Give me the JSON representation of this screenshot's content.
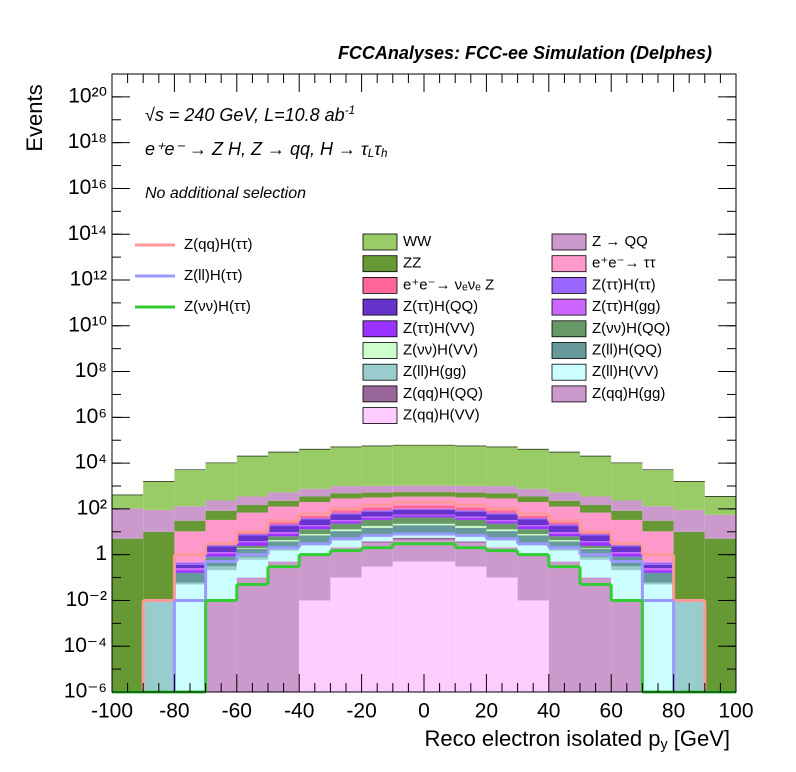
{
  "chart_data": {
    "type": "stacked_histogram",
    "title": "FCCAnalyses: FCC-ee Simulation (Delphes)",
    "y_label": "Events",
    "x_label": [
      {
        "text": "Reco electron isolated p"
      },
      {
        "text": "y",
        "sub": true
      },
      {
        "text": " [GeV]"
      }
    ],
    "annotations": [
      [
        {
          "text": "√s = 240 GeV, L=10.8 ab"
        },
        {
          "text": "-1",
          "sup": true
        }
      ],
      [
        {
          "text": "e⁺e⁻ → Z H, Z → qq, H → τ"
        },
        {
          "text": "L",
          "sub": true
        },
        {
          "text": "τ"
        },
        {
          "text": "h",
          "sub": true
        }
      ],
      [
        {
          "text": "No additional selection"
        }
      ]
    ],
    "log_y": true,
    "bins": [
      -100,
      -90,
      -80,
      -70,
      -60,
      -50,
      -40,
      -30,
      -20,
      -10,
      0,
      10,
      20,
      30,
      40,
      50,
      60,
      70,
      80,
      90,
      100
    ],
    "xlim": [
      -100,
      100
    ],
    "xticks": [
      -100,
      -80,
      -60,
      -40,
      -20,
      0,
      20,
      40,
      60,
      80,
      100
    ],
    "ylim": [
      1e-06,
      1e+21
    ],
    "yticks": [
      {
        "value": 1e-06,
        "label": "10⁻⁶"
      },
      {
        "value": 0.0001,
        "label": "10⁻⁴"
      },
      {
        "value": 0.01,
        "label": "10⁻²"
      },
      1,
      {
        "value": 100,
        "label": "10²"
      },
      {
        "value": 10000.0,
        "label": "10⁴"
      },
      {
        "value": 1000000.0,
        "label": "10⁶"
      },
      {
        "value": 100000000.0,
        "label": "10⁸"
      },
      {
        "value": 10000000000.0,
        "label": "10¹⁰"
      },
      {
        "value": 1000000000000.0,
        "label": "10¹²"
      },
      {
        "value": 100000000000000.0,
        "label": "10¹⁴"
      },
      {
        "value": 1e+16,
        "label": "10¹⁶"
      },
      {
        "value": 1e+18,
        "label": "10¹⁸"
      },
      {
        "value": 1e+20,
        "label": "10²⁰"
      }
    ],
    "series": [
      {
        "name": "WW",
        "color": "#99cc66",
        "values": [
          300,
          1500,
          5000,
          10000,
          20000,
          30000,
          40000,
          50000,
          55000,
          60000,
          60000,
          55000,
          50000,
          40000,
          30000,
          20000,
          10000,
          5000,
          1500,
          300
        ]
      },
      {
        "name": "Z → QQ",
        "color": "#cc99cc",
        "values": [
          100,
          80,
          100,
          150,
          200,
          300,
          400,
          500,
          500,
          500,
          500,
          500,
          500,
          400,
          300,
          200,
          150,
          100,
          80,
          50
        ]
      },
      {
        "name": "ZZ",
        "color": "#669933",
        "values": [
          5,
          10,
          20,
          50,
          80,
          100,
          150,
          200,
          200,
          200,
          200,
          200,
          200,
          150,
          100,
          80,
          50,
          20,
          10,
          5
        ]
      },
      {
        "name": "e⁺e⁻→ ττ",
        "color": "#ff99cc",
        "values": [
          0,
          0,
          10,
          30,
          60,
          100,
          150,
          200,
          200,
          200,
          200,
          200,
          200,
          150,
          100,
          60,
          30,
          10,
          0,
          0
        ]
      },
      {
        "name": "e⁺e⁻→ νₑνₑ Z",
        "color": "#ff6699",
        "values": [
          0,
          0,
          0,
          0.1,
          1,
          5,
          10,
          20,
          30,
          40,
          40,
          30,
          20,
          10,
          5,
          1,
          0.1,
          0,
          0,
          0
        ]
      },
      {
        "name": "Z(ττ)H(ττ)",
        "color": "#9966ff",
        "values": [
          0,
          0,
          0.1,
          0.5,
          1,
          3,
          5,
          8,
          10,
          10,
          10,
          10,
          8,
          5,
          3,
          1,
          0.5,
          0.1,
          0,
          0
        ]
      },
      {
        "name": "Z(ττ)H(QQ)",
        "color": "#6633cc",
        "values": [
          0,
          0,
          0.1,
          1,
          3,
          8,
          15,
          25,
          30,
          35,
          35,
          30,
          25,
          15,
          8,
          3,
          1,
          0.1,
          0,
          0
        ]
      },
      {
        "name": "Z(ττ)H(gg)",
        "color": "#cc66ff",
        "values": [
          0,
          0,
          0.05,
          0.2,
          0.5,
          1.5,
          2.5,
          4,
          5,
          5,
          5,
          5,
          4,
          2.5,
          1.5,
          0.5,
          0.2,
          0.05,
          0,
          0
        ]
      },
      {
        "name": "Z(ττ)H(VV)",
        "color": "#9933ff",
        "values": [
          0,
          0,
          0.05,
          0.3,
          1,
          2,
          4,
          6,
          8,
          9,
          9,
          8,
          6,
          4,
          2,
          1,
          0.3,
          0.05,
          0,
          0
        ]
      },
      {
        "name": "Z(νν)H(QQ)",
        "color": "#669966",
        "values": [
          0,
          0,
          0,
          0,
          0.5,
          2,
          5,
          10,
          15,
          20,
          20,
          15,
          10,
          5,
          2,
          0.5,
          0,
          0,
          0,
          0
        ]
      },
      {
        "name": "Z(νν)H(VV)",
        "color": "#ccffcc",
        "values": [
          0,
          0,
          0,
          0,
          0.1,
          0.5,
          1,
          2,
          3,
          3,
          3,
          3,
          2,
          1,
          0.5,
          0.1,
          0,
          0,
          0,
          0
        ]
      },
      {
        "name": "Z(ll)H(QQ)",
        "color": "#669999",
        "values": [
          0,
          0,
          0.1,
          0.5,
          1,
          2,
          4,
          6,
          8,
          10,
          10,
          8,
          6,
          4,
          2,
          1,
          0.5,
          0.1,
          0,
          0
        ]
      },
      {
        "name": "Z(ll)H(gg)",
        "color": "#99cccc",
        "values": [
          0,
          0.01,
          0.01,
          0.1,
          0.2,
          0.3,
          0.5,
          0.6,
          0.7,
          0.8,
          0.8,
          0.7,
          0.6,
          0.5,
          0.3,
          0.2,
          0.1,
          0.01,
          0.01,
          0
        ]
      },
      {
        "name": "Z(ll)H(VV)",
        "color": "#ccffff",
        "values": [
          0,
          0,
          0.05,
          0.2,
          0.5,
          1,
          1.5,
          2,
          2.5,
          3,
          3,
          2.5,
          2,
          1.5,
          1,
          0.5,
          0.2,
          0.05,
          0,
          0
        ]
      },
      {
        "name": "Z(qq)H(QQ)",
        "color": "#996699",
        "values": [
          0,
          0,
          0,
          0,
          0,
          0,
          0,
          0,
          0.5,
          1,
          1,
          0.5,
          0,
          0,
          0,
          0,
          0,
          0,
          0,
          0
        ]
      },
      {
        "name": "Z(qq)H(gg)",
        "color": "#cc99cc",
        "values": [
          0,
          0,
          0,
          0.01,
          0.1,
          0.5,
          1,
          2,
          3,
          4,
          4,
          3,
          2,
          1,
          0.5,
          0.1,
          0.01,
          0,
          0,
          0
        ]
      },
      {
        "name": "Z(qq)H(VV)",
        "color": "#ffccff",
        "values": [
          0,
          0,
          0,
          0,
          0,
          0,
          0.01,
          0.1,
          0.3,
          0.5,
          0.5,
          0.3,
          0.1,
          0.01,
          0,
          0,
          0,
          0,
          0,
          0
        ]
      }
    ],
    "lines": [
      {
        "name": "Z(qq)H(ττ)",
        "color": "#ff9999",
        "values": [
          0,
          0.01,
          1,
          3,
          10,
          30,
          60,
          100,
          150,
          200,
          200,
          150,
          100,
          60,
          30,
          10,
          3,
          1,
          0.01,
          0
        ]
      },
      {
        "name": "Z(ll)H(ττ)",
        "color": "#9999ff",
        "values": [
          0,
          0,
          0.01,
          0.5,
          1,
          2,
          3,
          5,
          7,
          8,
          8,
          7,
          5,
          3,
          2,
          1,
          0.5,
          0.01,
          0,
          0
        ]
      },
      {
        "name": "Z(νν)H(ττ)",
        "color": "#33cc33",
        "values": [
          0,
          0,
          0,
          0.01,
          0.05,
          0.3,
          1,
          1.5,
          2,
          3,
          3,
          2,
          1.5,
          1,
          0.3,
          0.05,
          0.01,
          0,
          0,
          0
        ]
      }
    ]
  }
}
